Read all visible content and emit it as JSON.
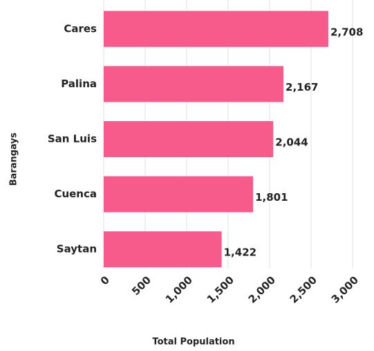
{
  "chart_data": {
    "type": "barh",
    "categories": [
      "Cares",
      "Palina",
      "San Luis",
      "Cuenca",
      "Saytan"
    ],
    "values": [
      2708,
      2167,
      2044,
      1801,
      1422
    ],
    "value_labels": [
      "2,708",
      "2,167",
      "2,044",
      "1,801",
      "1,422"
    ],
    "color": "#f65b8c",
    "xlabel": "Total Population",
    "ylabel": "Barangays",
    "xlim": [
      0,
      3000
    ],
    "xticks": [
      0,
      500,
      {
        "value": 1000,
        "label": "1,000"
      },
      {
        "value": 1500,
        "label": "1,500"
      },
      {
        "value": 2000,
        "label": "2,000"
      },
      {
        "value": 2500,
        "label": "2,500"
      },
      {
        "value": 3000,
        "label": "3,000"
      }
    ],
    "grid": true
  }
}
